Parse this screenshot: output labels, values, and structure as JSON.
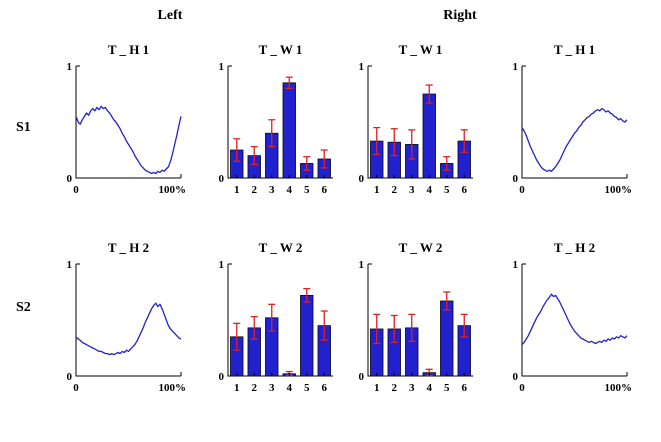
{
  "figure": {
    "headers": {
      "left": "Left",
      "right": "Right"
    },
    "row_labels": [
      "S1",
      "S2"
    ]
  },
  "colors": {
    "line": "#2222cc",
    "bar_fill": "#2121cd",
    "bar_edge": "#000000",
    "error": "#dd2222",
    "axis": "#000000"
  },
  "chart_data": [
    {
      "id": "s1-left-line",
      "row": "S1",
      "column": 1,
      "type": "line",
      "title": "T _ H 1",
      "ylim": [
        0,
        1
      ],
      "yticks": [
        "0",
        "1"
      ],
      "x_range": [
        0,
        100
      ],
      "xticklabels": [
        "0",
        "100%"
      ],
      "values": [
        0.55,
        0.5,
        0.48,
        0.52,
        0.55,
        0.58,
        0.56,
        0.6,
        0.62,
        0.6,
        0.63,
        0.61,
        0.64,
        0.62,
        0.63,
        0.6,
        0.58,
        0.55,
        0.52,
        0.5,
        0.47,
        0.44,
        0.4,
        0.37,
        0.33,
        0.3,
        0.27,
        0.24,
        0.2,
        0.17,
        0.14,
        0.11,
        0.09,
        0.07,
        0.06,
        0.05,
        0.04,
        0.05,
        0.04,
        0.06,
        0.05,
        0.07,
        0.06,
        0.08,
        0.1,
        0.15,
        0.22,
        0.3,
        0.38,
        0.47,
        0.55
      ]
    },
    {
      "id": "s1-left-bar",
      "row": "S1",
      "column": 2,
      "type": "bar",
      "title": "T _ W 1",
      "ylim": [
        0,
        1
      ],
      "yticks": [
        "0",
        "1"
      ],
      "categories": [
        "1",
        "2",
        "3",
        "4",
        "5",
        "6"
      ],
      "values": [
        0.25,
        0.2,
        0.4,
        0.85,
        0.13,
        0.17
      ],
      "errors": [
        0.1,
        0.08,
        0.12,
        0.05,
        0.06,
        0.08
      ]
    },
    {
      "id": "s1-right-bar",
      "row": "S1",
      "column": 3,
      "type": "bar",
      "title": "T _ W 1",
      "ylim": [
        0,
        1
      ],
      "yticks": [
        "0",
        "1"
      ],
      "categories": [
        "1",
        "2",
        "3",
        "4",
        "5",
        "6"
      ],
      "values": [
        0.33,
        0.32,
        0.3,
        0.75,
        0.13,
        0.33
      ],
      "errors": [
        0.12,
        0.12,
        0.13,
        0.08,
        0.06,
        0.1
      ]
    },
    {
      "id": "s1-right-line",
      "row": "S1",
      "column": 4,
      "type": "line",
      "title": "T _ H 1",
      "ylim": [
        0,
        1
      ],
      "yticks": [
        "0",
        "1"
      ],
      "x_range": [
        0,
        100
      ],
      "xticklabels": [
        "0",
        "100%"
      ],
      "values": [
        0.45,
        0.42,
        0.38,
        0.33,
        0.28,
        0.24,
        0.2,
        0.16,
        0.13,
        0.1,
        0.08,
        0.07,
        0.06,
        0.07,
        0.06,
        0.08,
        0.1,
        0.13,
        0.16,
        0.2,
        0.24,
        0.28,
        0.31,
        0.34,
        0.37,
        0.4,
        0.42,
        0.45,
        0.47,
        0.5,
        0.52,
        0.54,
        0.55,
        0.57,
        0.58,
        0.6,
        0.61,
        0.6,
        0.62,
        0.61,
        0.59,
        0.6,
        0.58,
        0.57,
        0.55,
        0.54,
        0.52,
        0.53,
        0.51,
        0.5,
        0.52
      ]
    },
    {
      "id": "s2-left-line",
      "row": "S2",
      "column": 1,
      "type": "line",
      "title": "T _ H 2",
      "ylim": [
        0,
        1
      ],
      "yticks": [
        "0",
        "1"
      ],
      "x_range": [
        0,
        100
      ],
      "xticklabels": [
        "0",
        "100%"
      ],
      "values": [
        0.35,
        0.33,
        0.32,
        0.3,
        0.29,
        0.28,
        0.27,
        0.26,
        0.25,
        0.24,
        0.23,
        0.22,
        0.22,
        0.21,
        0.2,
        0.2,
        0.19,
        0.2,
        0.19,
        0.2,
        0.21,
        0.2,
        0.22,
        0.21,
        0.23,
        0.22,
        0.24,
        0.26,
        0.28,
        0.31,
        0.35,
        0.39,
        0.43,
        0.48,
        0.52,
        0.56,
        0.6,
        0.63,
        0.65,
        0.62,
        0.64,
        0.6,
        0.55,
        0.5,
        0.45,
        0.42,
        0.4,
        0.38,
        0.36,
        0.34,
        0.33
      ]
    },
    {
      "id": "s2-left-bar",
      "row": "S2",
      "column": 2,
      "type": "bar",
      "title": "T _ W 2",
      "ylim": [
        0,
        1
      ],
      "yticks": [
        "0",
        "1"
      ],
      "categories": [
        "1",
        "2",
        "3",
        "4",
        "5",
        "6"
      ],
      "values": [
        0.35,
        0.43,
        0.52,
        0.02,
        0.72,
        0.45
      ],
      "errors": [
        0.12,
        0.1,
        0.12,
        0.02,
        0.06,
        0.13
      ]
    },
    {
      "id": "s2-right-bar",
      "row": "S2",
      "column": 3,
      "type": "bar",
      "title": "T _ W 2",
      "ylim": [
        0,
        1
      ],
      "yticks": [
        "0",
        "1"
      ],
      "categories": [
        "1",
        "2",
        "3",
        "4",
        "5",
        "6"
      ],
      "values": [
        0.42,
        0.42,
        0.43,
        0.03,
        0.67,
        0.45
      ],
      "errors": [
        0.13,
        0.12,
        0.12,
        0.03,
        0.08,
        0.1
      ]
    },
    {
      "id": "s2-right-line",
      "row": "S2",
      "column": 4,
      "type": "line",
      "title": "T _ H 2",
      "ylim": [
        0,
        1
      ],
      "yticks": [
        "0",
        "1"
      ],
      "x_range": [
        0,
        100
      ],
      "xticklabels": [
        "0",
        "100%"
      ],
      "values": [
        0.28,
        0.3,
        0.33,
        0.36,
        0.4,
        0.44,
        0.48,
        0.52,
        0.55,
        0.58,
        0.62,
        0.65,
        0.68,
        0.7,
        0.73,
        0.71,
        0.72,
        0.69,
        0.66,
        0.62,
        0.58,
        0.54,
        0.5,
        0.46,
        0.43,
        0.4,
        0.38,
        0.36,
        0.34,
        0.33,
        0.32,
        0.31,
        0.3,
        0.31,
        0.3,
        0.29,
        0.3,
        0.31,
        0.3,
        0.32,
        0.31,
        0.33,
        0.32,
        0.34,
        0.33,
        0.35,
        0.34,
        0.36,
        0.35,
        0.34,
        0.36
      ]
    }
  ]
}
